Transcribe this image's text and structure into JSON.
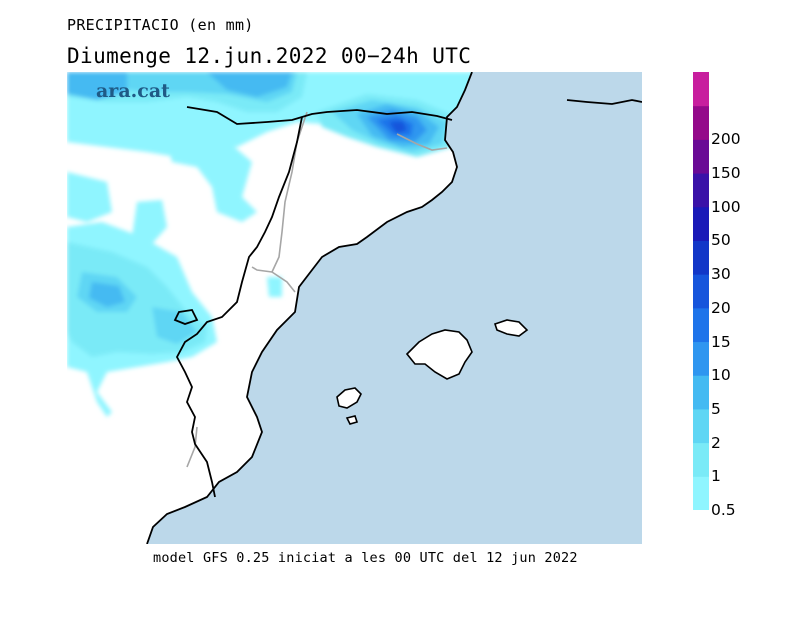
{
  "header": {
    "title": "PRECIPITACIO (en mm)",
    "subtitle": "Diumenge  12.jun.2022  00−24h  UTC"
  },
  "logo": {
    "text": "ara.cat"
  },
  "footer": {
    "text": "model GFS 0.25 iniciat a les 00 UTC del 12 jun 2022"
  },
  "colors": {
    "sea": "#bcd8ea",
    "land": "#ffffff",
    "coast": "#000000",
    "borders": "#a6a6a6"
  },
  "legend": {
    "items": [
      {
        "label": "0.5",
        "color": "#8ff5ff"
      },
      {
        "label": "1",
        "color": "#7aeaf7"
      },
      {
        "label": "2",
        "color": "#5fd6f4"
      },
      {
        "label": "5",
        "color": "#44baf2"
      },
      {
        "label": "10",
        "color": "#2f96f0"
      },
      {
        "label": "15",
        "color": "#1e74ea"
      },
      {
        "label": "20",
        "color": "#1655dc"
      },
      {
        "label": "30",
        "color": "#1237c8"
      },
      {
        "label": "50",
        "color": "#1a1ab8"
      },
      {
        "label": "100",
        "color": "#3a12a8"
      },
      {
        "label": "150",
        "color": "#6a0a96"
      },
      {
        "label": "200",
        "color": "#94098a"
      },
      {
        "label": "",
        "color": "#c81e9e"
      }
    ]
  }
}
